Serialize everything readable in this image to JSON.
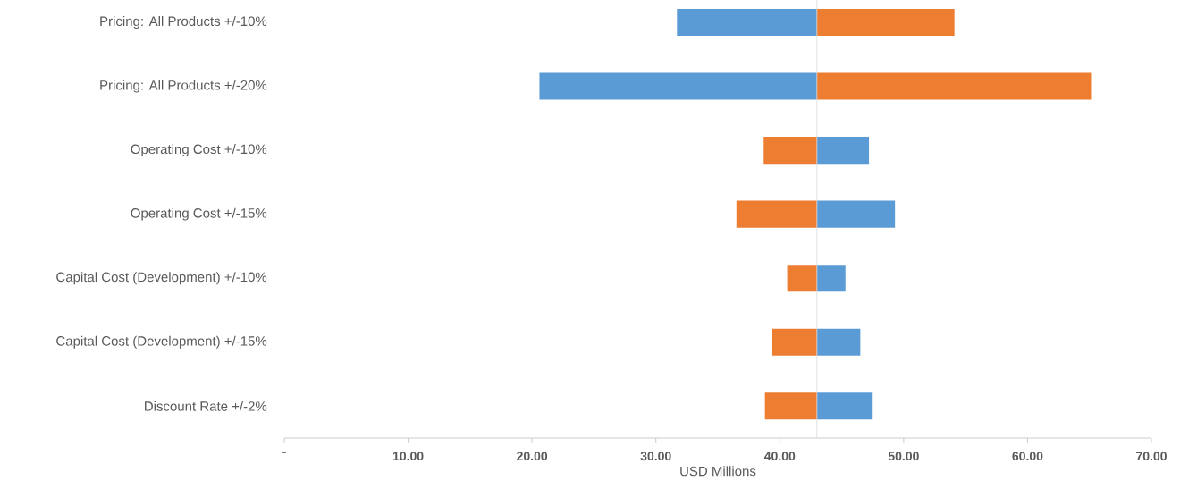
{
  "chart_data": {
    "type": "bar",
    "orientation": "horizontal",
    "xlabel": "USD Millions",
    "categories": [
      "Pricing: All Products +/-10%",
      "Pricing: All Products +/-20%",
      "Operating Cost +/-10%",
      "Operating Cost +/-15%",
      "Capital Cost (Development) +/-10%",
      "Capital Cost (Development) +/-15%",
      "Discount Rate +/-2%"
    ],
    "series": [
      {
        "color": "#5b9bd5",
        "base": [
          31.7,
          20.6,
          43.0,
          43.0,
          43.0,
          43.0,
          43.0
        ],
        "values": [
          11.3,
          22.4,
          4.2,
          6.3,
          2.3,
          3.5,
          4.5
        ]
      },
      {
        "color": "#ed7d31",
        "base": [
          43.0,
          43.0,
          38.7,
          36.5,
          40.6,
          39.4,
          38.8
        ],
        "values": [
          11.1,
          22.2,
          4.3,
          6.5,
          2.4,
          3.6,
          4.2
        ]
      }
    ],
    "xlim": [
      0,
      70
    ],
    "xticks": [
      {
        "value": 0,
        "label": "-"
      },
      {
        "value": 10,
        "label": "10.00"
      },
      {
        "value": 20,
        "label": "20.00"
      },
      {
        "value": 30,
        "label": "30.00"
      },
      {
        "value": 40,
        "label": "40.00"
      },
      {
        "value": 50,
        "label": "50.00"
      },
      {
        "value": 60,
        "label": "60.00"
      },
      {
        "value": 70,
        "label": "70.00"
      }
    ],
    "ref_lines": [
      {
        "axis": "x",
        "value": 43.0,
        "color": "#d9d9d9"
      }
    ]
  }
}
